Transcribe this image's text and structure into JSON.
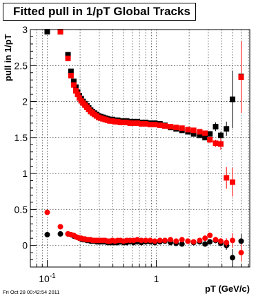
{
  "chart_data": {
    "type": "scatter",
    "title": "Fitted pull in 1/pT  Global Tracks",
    "xlabel": "pT (GeV/c)",
    "ylabel": "pull in 1/pT",
    "x_scale": "log",
    "xlim": [
      0.07,
      7.2
    ],
    "ylim": [
      -0.3,
      3.0
    ],
    "x_ticks": [
      {
        "value": 0.1,
        "label": "10",
        "sup": "-1"
      },
      {
        "value": 1,
        "label": "1",
        "sup": ""
      }
    ],
    "y_ticks": [
      {
        "value": 0,
        "label": "0"
      },
      {
        "value": 0.5,
        "label": "0.5"
      },
      {
        "value": 1,
        "label": "1"
      },
      {
        "value": 1.5,
        "label": "1.5"
      },
      {
        "value": 2,
        "label": "2"
      },
      {
        "value": 2.5,
        "label": "2.5"
      },
      {
        "value": 3,
        "label": "3"
      }
    ],
    "grid": true,
    "marker_shape": "square",
    "series": [
      {
        "marker": "square",
        "color": "#000000",
        "x": [
          0.1,
          0.132,
          0.155,
          0.165,
          0.175,
          0.183,
          0.19,
          0.197,
          0.205,
          0.213,
          0.222,
          0.231,
          0.24,
          0.25,
          0.26,
          0.271,
          0.283,
          0.296,
          0.309,
          0.324,
          0.34,
          0.357,
          0.376,
          0.396,
          0.418,
          0.442,
          0.47,
          0.5,
          0.535,
          0.575,
          0.62,
          0.67,
          0.73,
          0.8,
          0.88,
          0.97,
          1.08,
          1.2,
          1.35,
          1.52,
          1.72,
          1.95,
          2.2,
          2.5,
          2.8,
          3.1,
          3.5,
          3.9,
          4.4,
          5.0,
          6.0
        ],
        "y": [
          2.97,
          2.97,
          2.65,
          2.42,
          2.28,
          2.2,
          2.13,
          2.08,
          2.04,
          2.0,
          1.97,
          1.94,
          1.91,
          1.88,
          1.86,
          1.84,
          1.82,
          1.8,
          1.79,
          1.78,
          1.77,
          1.76,
          1.75,
          1.75,
          1.74,
          1.74,
          1.73,
          1.73,
          1.73,
          1.72,
          1.72,
          1.72,
          1.71,
          1.71,
          1.7,
          1.7,
          1.69,
          1.67,
          1.64,
          1.62,
          1.6,
          1.58,
          1.55,
          1.53,
          1.5,
          1.55,
          1.65,
          1.53,
          1.62,
          2.03,
          2.35
        ],
        "yerr": [
          0,
          0,
          0,
          0,
          0,
          0,
          0,
          0,
          0,
          0,
          0,
          0,
          0,
          0,
          0,
          0,
          0,
          0,
          0,
          0,
          0,
          0,
          0,
          0,
          0,
          0,
          0,
          0,
          0,
          0,
          0,
          0,
          0,
          0,
          0,
          0,
          0,
          0,
          0,
          0,
          0,
          0,
          0,
          0,
          0,
          0,
          0.06,
          0.05,
          0.1,
          0.4,
          0.2
        ]
      },
      {
        "marker": "square",
        "color": "#ff0000",
        "x": [
          0.132,
          0.155,
          0.165,
          0.175,
          0.183,
          0.19,
          0.197,
          0.205,
          0.213,
          0.222,
          0.231,
          0.24,
          0.25,
          0.26,
          0.271,
          0.283,
          0.296,
          0.309,
          0.324,
          0.34,
          0.357,
          0.376,
          0.396,
          0.418,
          0.442,
          0.47,
          0.5,
          0.535,
          0.575,
          0.62,
          0.67,
          0.73,
          0.8,
          0.88,
          0.97,
          1.08,
          1.2,
          1.35,
          1.52,
          1.72,
          1.95,
          2.2,
          2.5,
          2.8,
          3.1,
          3.5,
          3.9,
          4.4,
          5.0,
          6.0
        ],
        "y": [
          2.97,
          2.6,
          2.36,
          2.23,
          2.15,
          2.1,
          2.05,
          2.01,
          1.98,
          1.95,
          1.92,
          1.89,
          1.86,
          1.84,
          1.82,
          1.8,
          1.78,
          1.77,
          1.76,
          1.75,
          1.74,
          1.73,
          1.73,
          1.72,
          1.72,
          1.71,
          1.71,
          1.71,
          1.7,
          1.7,
          1.7,
          1.69,
          1.69,
          1.68,
          1.68,
          1.67,
          1.66,
          1.65,
          1.64,
          1.63,
          1.61,
          1.6,
          1.58,
          1.56,
          1.47,
          1.42,
          1.41,
          0.94,
          0.88,
          2.34
        ],
        "yerr": [
          0,
          0,
          0,
          0,
          0,
          0,
          0,
          0,
          0,
          0,
          0,
          0,
          0,
          0,
          0,
          0,
          0,
          0,
          0,
          0,
          0,
          0,
          0,
          0,
          0,
          0,
          0,
          0,
          0,
          0,
          0,
          0,
          0,
          0,
          0,
          0,
          0,
          0,
          0,
          0,
          0,
          0,
          0,
          0,
          0.05,
          0.05,
          0.08,
          0.15,
          0.2,
          0.5
        ]
      },
      {
        "marker": "circle",
        "color": "#000000",
        "x": [
          0.1,
          0.132,
          0.155,
          0.165,
          0.175,
          0.183,
          0.19,
          0.197,
          0.205,
          0.213,
          0.222,
          0.231,
          0.24,
          0.25,
          0.26,
          0.271,
          0.283,
          0.296,
          0.309,
          0.324,
          0.34,
          0.357,
          0.376,
          0.396,
          0.418,
          0.442,
          0.47,
          0.5,
          0.535,
          0.575,
          0.62,
          0.67,
          0.73,
          0.8,
          0.88,
          0.97,
          1.08,
          1.2,
          1.35,
          1.52,
          1.72,
          1.95,
          2.2,
          2.5,
          2.8,
          3.1,
          3.5,
          3.9,
          4.4,
          5.0,
          6.0
        ],
        "y": [
          0.15,
          0.16,
          0.16,
          0.15,
          0.13,
          0.12,
          0.11,
          0.1,
          0.09,
          0.08,
          0.08,
          0.07,
          0.07,
          0.06,
          0.06,
          0.06,
          0.05,
          0.05,
          0.05,
          0.05,
          0.05,
          0.04,
          0.04,
          0.04,
          0.04,
          0.04,
          0.05,
          0.04,
          0.04,
          0.05,
          0.04,
          0.05,
          0.04,
          0.05,
          0.05,
          0.04,
          0.05,
          0.06,
          0.04,
          0.03,
          0.02,
          0.06,
          0.04,
          0.05,
          0.02,
          0.05,
          0.07,
          0.03,
          0.0,
          -0.17,
          0.06
        ],
        "yerr": [
          0,
          0,
          0,
          0,
          0,
          0,
          0,
          0,
          0,
          0,
          0,
          0,
          0,
          0,
          0,
          0,
          0,
          0,
          0,
          0,
          0,
          0,
          0,
          0,
          0,
          0,
          0,
          0,
          0,
          0,
          0,
          0,
          0,
          0,
          0,
          0,
          0,
          0,
          0,
          0,
          0,
          0,
          0,
          0,
          0.03,
          0.03,
          0.04,
          0.04,
          0.06,
          0.12,
          0.1
        ]
      },
      {
        "marker": "circle",
        "color": "#ff0000",
        "x": [
          0.1,
          0.132,
          0.155,
          0.165,
          0.175,
          0.183,
          0.19,
          0.197,
          0.205,
          0.213,
          0.222,
          0.231,
          0.24,
          0.25,
          0.26,
          0.271,
          0.283,
          0.296,
          0.309,
          0.324,
          0.34,
          0.357,
          0.376,
          0.396,
          0.418,
          0.442,
          0.47,
          0.5,
          0.535,
          0.575,
          0.62,
          0.67,
          0.73,
          0.8,
          0.88,
          0.97,
          1.08,
          1.2,
          1.35,
          1.52,
          1.72,
          1.95,
          2.2,
          2.5,
          2.8,
          3.1,
          3.5,
          3.9,
          4.4,
          5.0,
          6.0
        ],
        "y": [
          0.46,
          0.26,
          0.16,
          0.15,
          0.14,
          0.12,
          0.11,
          0.1,
          0.1,
          0.09,
          0.09,
          0.08,
          0.08,
          0.08,
          0.07,
          0.07,
          0.07,
          0.07,
          0.07,
          0.07,
          0.07,
          0.06,
          0.06,
          0.07,
          0.06,
          0.07,
          0.07,
          0.06,
          0.07,
          0.07,
          0.07,
          0.08,
          0.07,
          0.07,
          0.07,
          0.06,
          0.07,
          0.07,
          0.08,
          0.06,
          0.08,
          0.06,
          0.05,
          0.07,
          0.1,
          0.14,
          0.08,
          0.06,
          0.04,
          0.07,
          -0.1
        ],
        "yerr": [
          0,
          0,
          0,
          0,
          0,
          0,
          0,
          0,
          0,
          0,
          0,
          0,
          0,
          0,
          0,
          0,
          0,
          0,
          0,
          0,
          0,
          0,
          0,
          0,
          0,
          0,
          0,
          0,
          0,
          0,
          0,
          0,
          0,
          0,
          0,
          0,
          0,
          0,
          0,
          0,
          0,
          0,
          0,
          0,
          0.03,
          0.03,
          0.04,
          0.04,
          0.06,
          0.1,
          0.12
        ]
      }
    ]
  },
  "footer_stamp": "Fri Oct 28 00:42:54 2011"
}
